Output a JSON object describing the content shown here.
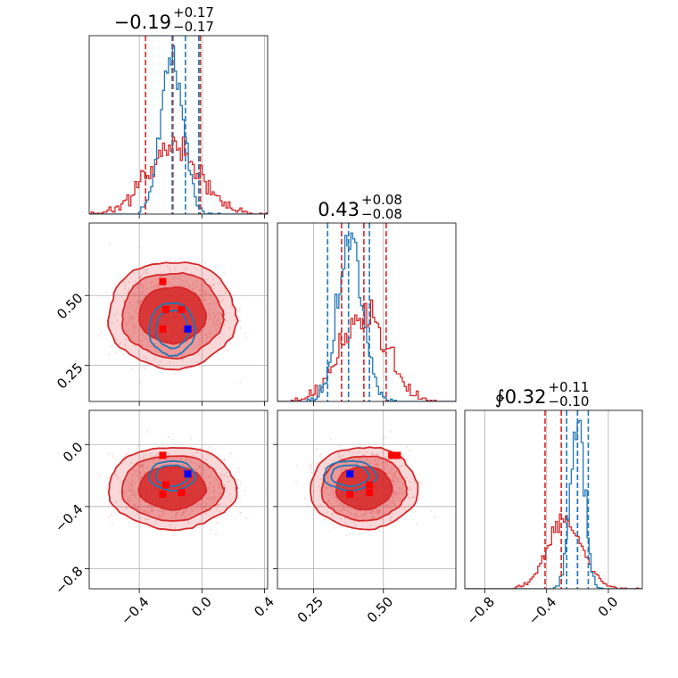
{
  "chart_data": {
    "type": "corner",
    "colors": {
      "red": "#d62728",
      "blue": "#1f77b4",
      "red_marker": "#ff0000",
      "blue_marker": "#0000ff",
      "grid": "#b0b0b0"
    },
    "parameters": [
      {
        "title_main": "−0.19",
        "title_sup": "+0.17",
        "title_sub": "−0.17",
        "range": [
          -0.72,
          0.42
        ],
        "ticks": [
          -0.4,
          0.0,
          0.4
        ],
        "tick_labels": [
          "−0.4",
          "0.0",
          "0.4"
        ]
      },
      {
        "title_main": "0.43",
        "title_sup": "+0.08",
        "title_sub": "−0.08",
        "range": [
          0.12,
          0.76
        ],
        "ticks": [
          0.25,
          0.5
        ],
        "tick_labels": [
          "0.25",
          "0.50"
        ]
      },
      {
        "title_main": "∲0.32",
        "title_sup": "+0.11",
        "title_sub": "−0.10",
        "range": [
          -0.93,
          0.22
        ],
        "ticks": [
          -0.8,
          -0.4,
          0.0
        ],
        "tick_labels": [
          "−0.8",
          "−0.4",
          "0.0"
        ]
      }
    ],
    "red_posterior": {
      "mean": [
        -0.19,
        0.43,
        -0.28
      ],
      "std": [
        0.17,
        0.08,
        0.11
      ],
      "quantiles": [
        [
          -0.36,
          -0.01
        ],
        [
          0.35,
          0.51
        ],
        [
          -0.41,
          -0.2
        ]
      ]
    },
    "blue_posterior": {
      "mean": [
        -0.19,
        0.38,
        -0.2
      ],
      "std": [
        0.07,
        0.045,
        0.045
      ],
      "quantiles": [
        [
          -0.19,
          -0.02
        ],
        [
          0.3,
          0.45
        ],
        [
          -0.27,
          -0.13
        ]
      ]
    },
    "red_markers": [
      {
        "x": -0.25,
        "y": 0.55,
        "z": -0.07
      },
      {
        "x": -0.23,
        "y": 0.45,
        "z": -0.26
      },
      {
        "x": -0.13,
        "y": 0.45,
        "z": -0.31
      },
      {
        "x": -0.25,
        "y": 0.38,
        "z": -0.32
      },
      {
        "x": 0.54,
        "y": 0.53,
        "z": -0.07
      }
    ],
    "blue_markers": [
      {
        "x": -0.09,
        "y": 0.38,
        "z": -0.19
      }
    ]
  }
}
